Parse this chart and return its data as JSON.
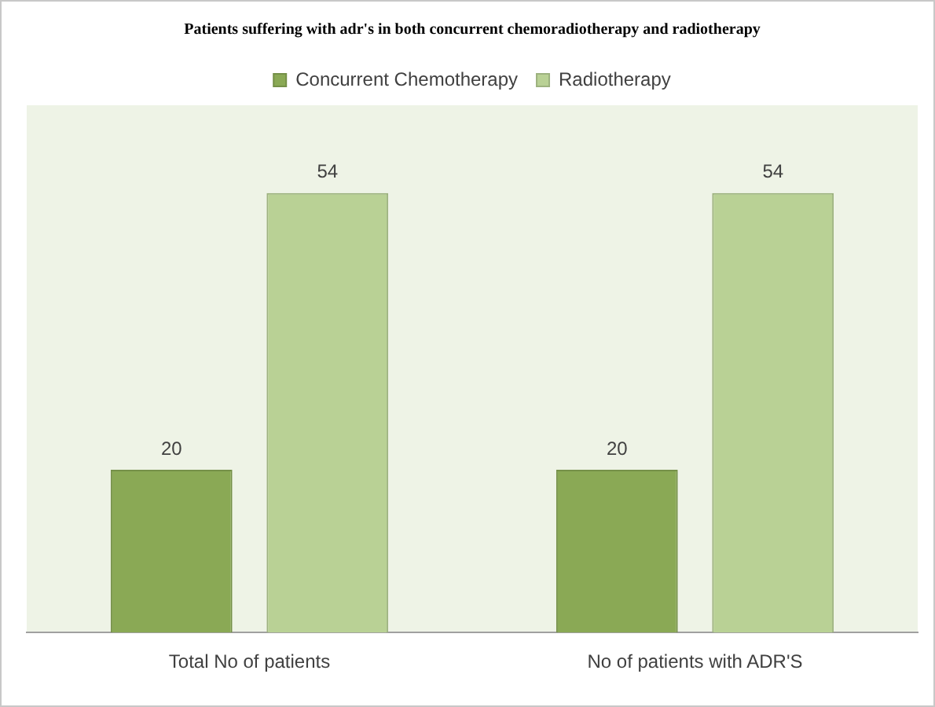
{
  "chart_data": {
    "type": "bar",
    "title": "Patients suffering with adr's in both concurrent chemoradiotherapy and radiotherapy",
    "categories": [
      "Total No of patients",
      "No of patients with ADR'S"
    ],
    "series": [
      {
        "name": "Concurrent Chemotherapy",
        "color": "#8aa955",
        "values": [
          20,
          20
        ]
      },
      {
        "name": "Radiotherapy",
        "color": "#b9d195",
        "values": [
          54,
          54
        ]
      }
    ],
    "data_labels": true,
    "legend": "top"
  }
}
